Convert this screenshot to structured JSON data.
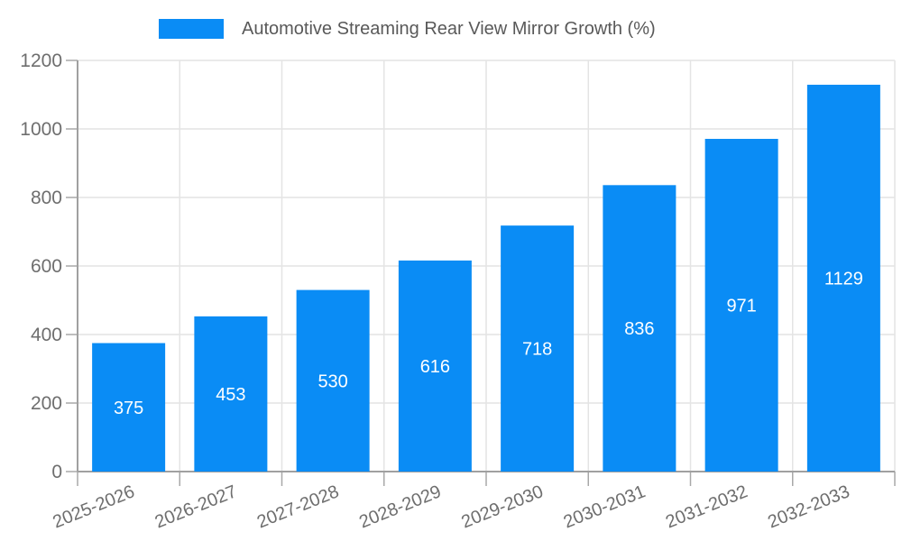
{
  "chart_data": {
    "type": "bar",
    "title": "",
    "legend_label": "Automotive Streaming Rear View Mirror Growth (%)",
    "legend_position": "top",
    "categories": [
      "2025-2026",
      "2026-2027",
      "2027-2028",
      "2028-2029",
      "2029-2030",
      "2030-2031",
      "2031-2032",
      "2032-2033"
    ],
    "values": [
      375,
      453,
      530,
      616,
      718,
      836,
      971,
      1129
    ],
    "xlabel": "",
    "ylabel": "",
    "ylim": [
      0,
      1200
    ],
    "yticks": [
      0,
      200,
      400,
      600,
      800,
      1000,
      1200
    ],
    "grid": true,
    "x_label_rotation_deg": -22,
    "colors": {
      "bar": "#0a8cf5",
      "bar_value_label": "#ffffff",
      "grid_line": "#e4e4e4",
      "axis_line": "#a0a0a0",
      "tick_mark": "#a8a8a8",
      "axis_tick_text": "#6e6e6e",
      "legend_text": "#595959",
      "background": "#ffffff"
    }
  }
}
